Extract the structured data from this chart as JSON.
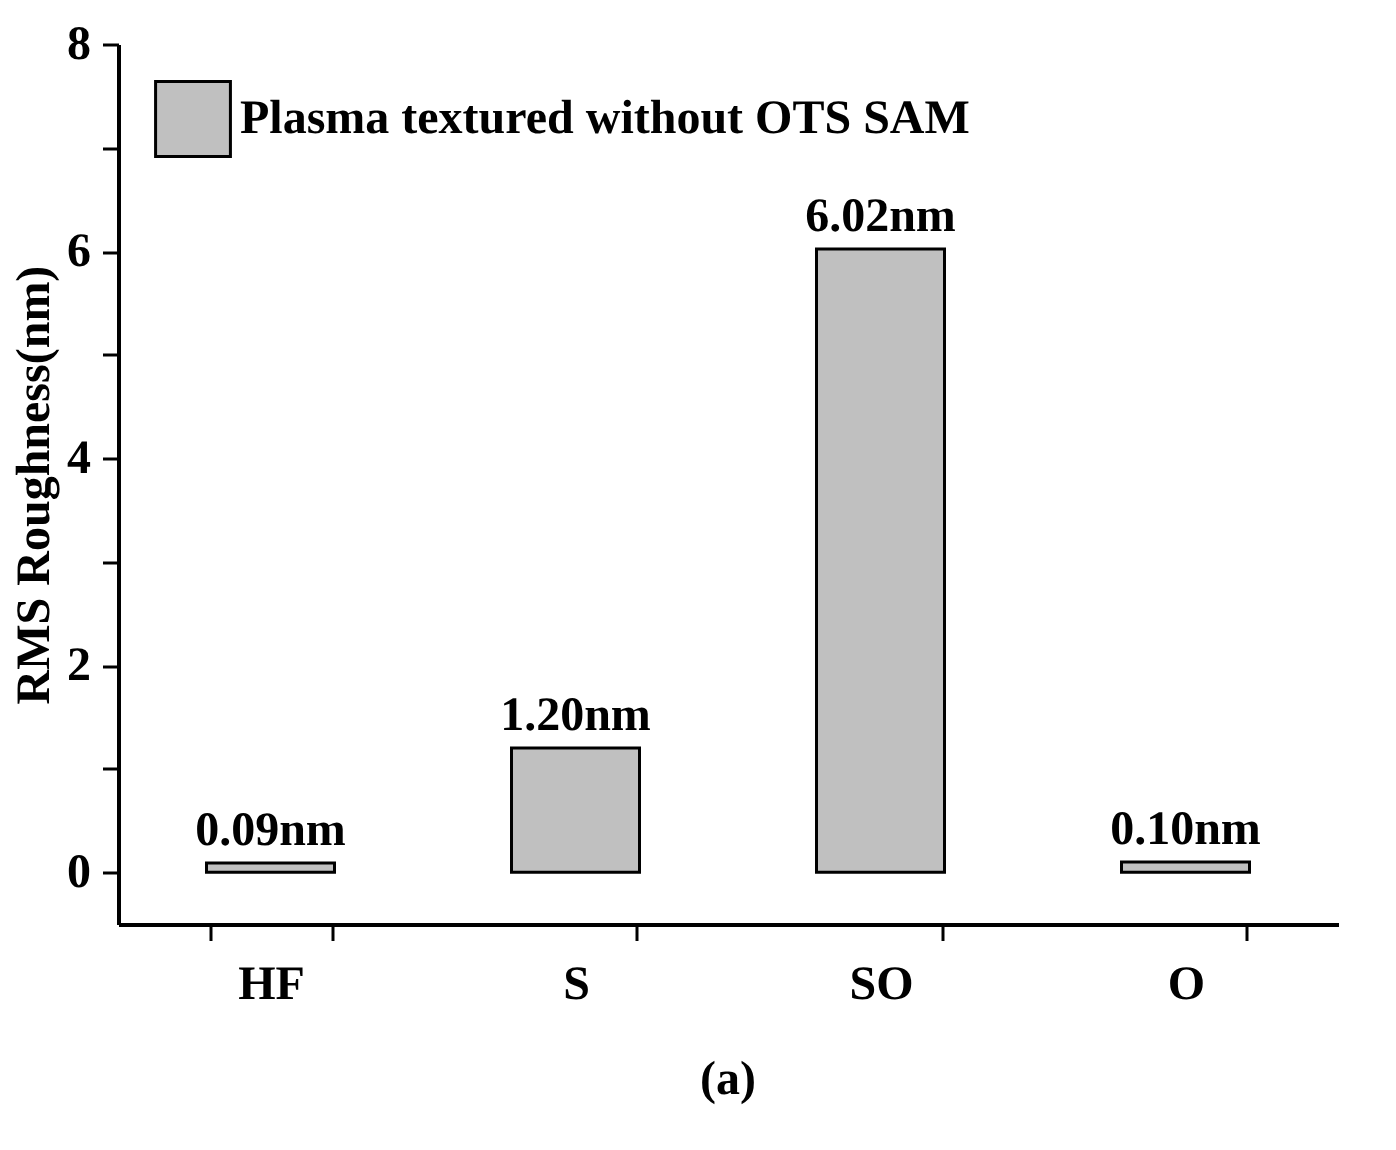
{
  "chart_data": {
    "type": "bar",
    "categories": [
      "HF",
      "S",
      "SO",
      "O"
    ],
    "series": [
      {
        "name": "Plasma textured without OTS SAM",
        "color": "#c0c0c0",
        "values": [
          0.09,
          1.2,
          6.02,
          0.1
        ],
        "value_labels": [
          "0.09nm",
          "1.20nm",
          "6.02nm",
          "0.10nm"
        ]
      }
    ],
    "ylabel": "RMS Roughness(nm)",
    "ylim": [
      -0.5,
      8
    ],
    "yticks": [
      0,
      {
        "value": 1,
        "label": null
      },
      2,
      {
        "value": 3,
        "label": null
      },
      4,
      {
        "value": 5,
        "label": null
      },
      6,
      {
        "value": 7,
        "label": null
      },
      8
    ],
    "grid": false,
    "legend": "top left",
    "annotations": [
      "(a)"
    ]
  }
}
